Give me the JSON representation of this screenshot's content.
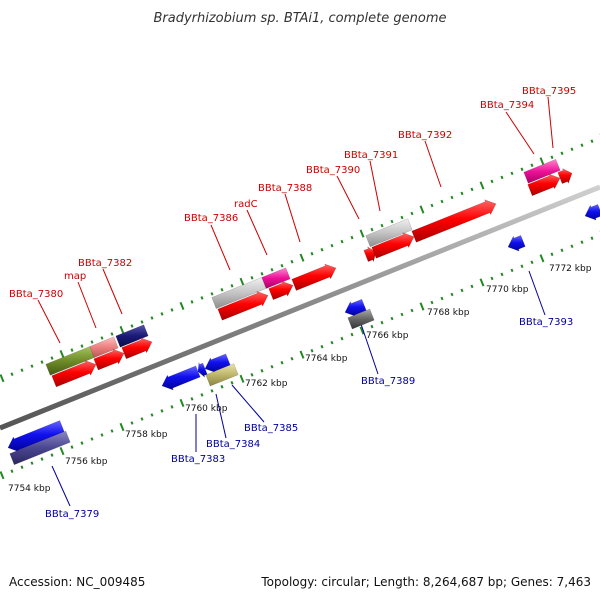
{
  "title": "Bradyrhizobium sp. BTAi1, complete genome",
  "footer": {
    "accession": "Accession: NC_009485",
    "summary": "Topology: circular; Length: 8,264,687 bp; Genes: 7,463"
  },
  "colors": {
    "backbone": "#888888",
    "forward_label": "#cc0000",
    "reverse_label": "#000099",
    "tick": "#228822"
  },
  "scale_ticks": [
    "7754 kbp",
    "7756 kbp",
    "7758 kbp",
    "7760 kbp",
    "7762 kbp",
    "7764 kbp",
    "7766 kbp",
    "7768 kbp",
    "7770 kbp",
    "7772 kbp"
  ],
  "forward_labels": [
    "BBta_7380",
    "map",
    "BBta_7382",
    "BBta_7386",
    "radC",
    "BBta_7388",
    "BBta_7390",
    "BBta_7391",
    "BBta_7392",
    "BBta_7394",
    "BBta_7395"
  ],
  "reverse_labels": [
    "BBta_7379",
    "BBta_7383",
    "BBta_7384",
    "BBta_7385",
    "BBta_7389",
    "BBta_7393"
  ]
}
